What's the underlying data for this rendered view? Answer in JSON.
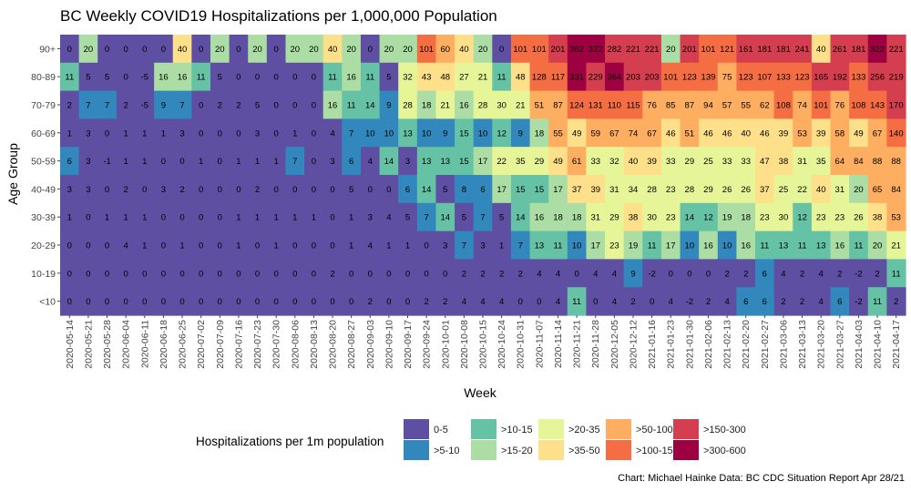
{
  "chart_data": {
    "type": "heatmap",
    "title": "BC Weekly COVID19 Hospitalizations per 1,000,000 Population",
    "xlabel": "Week",
    "ylabel": "Age Group",
    "caption": "Chart: Michael Hainke Data: BC CDC Situation Report Apr 28/21",
    "x": [
      "2020-05-14",
      "2020-05-21",
      "2020-05-28",
      "2020-06-04",
      "2020-06-11",
      "2020-06-18",
      "2020-06-25",
      "2020-07-02",
      "2020-07-09",
      "2020-07-16",
      "2020-07-23",
      "2020-07-30",
      "2020-08-06",
      "2020-08-13",
      "2020-08-20",
      "2020-08-27",
      "2020-09-03",
      "2020-09-10",
      "2020-09-17",
      "2020-09-24",
      "2020-10-01",
      "2020-10-08",
      "2020-10-15",
      "2020-10-24",
      "2020-10-31",
      "2020-11-07",
      "2020-11-14",
      "2020-11-21",
      "2020-11-28",
      "2020-12-05",
      "2020-12-12",
      "2021-01-16",
      "2021-01-23",
      "2021-01-30",
      "2021-02-06",
      "2021-02-13",
      "2021-02-20",
      "2021-02-27",
      "2021-03-06",
      "2021-03-13",
      "2021-03-20",
      "2021-03-27",
      "2021-04-03",
      "2021-04-10",
      "2021-04-17"
    ],
    "x_tick_labels": [
      "2020-05-14",
      "2020-05-21",
      "2020-05-28",
      "2020-06-04",
      "2020-06-11",
      "2020-06-18",
      "2020-06-25",
      "2020-07-02",
      "2020-07-09",
      "2020-07-16",
      "2020-07-23",
      "2020-07-30",
      "2020-08-06",
      "2020-08-13",
      "2020-08-20",
      "2020-08-27",
      "2020-09-03",
      "2020-09-10",
      "2020-09-17",
      "2020-09-24",
      "2020-10-01",
      "2020-10-08",
      "2020-10-15",
      "2020-10-24",
      "2020-10-31",
      "2020-11-07",
      "2020-11-14",
      "2020-11-21",
      "2020-11-28",
      "2020-12-05",
      "2020-12-12",
      "2021-01-16",
      "2021-01-23",
      "2021-01-30",
      "2021-02-06",
      "2021-02-13",
      "2021-02-20",
      "2021-02-27",
      "2021-03-06",
      "2021-03-13",
      "2021-03-20",
      "2021-03-27",
      "2021-04-03",
      "2021-04-10",
      "2021-04-17"
    ],
    "rows": [
      "90+",
      "80-89",
      "70-79",
      "60-69",
      "50-59",
      "40-49",
      "30-39",
      "20-29",
      "10-19",
      "<10"
    ],
    "values": [
      [
        0,
        20,
        0,
        0,
        0,
        0,
        40,
        0,
        20,
        0,
        20,
        0,
        20,
        20,
        40,
        20,
        0,
        20,
        20,
        101,
        60,
        40,
        20,
        0,
        101,
        101,
        201,
        362,
        322,
        282,
        221,
        221,
        20,
        201,
        101,
        121,
        161,
        181,
        181,
        241,
        40,
        261,
        181,
        322,
        221
      ],
      [
        11,
        5,
        5,
        0,
        -5,
        16,
        16,
        11,
        5,
        0,
        0,
        0,
        0,
        0,
        11,
        16,
        11,
        5,
        32,
        43,
        48,
        27,
        21,
        11,
        48,
        128,
        117,
        331,
        229,
        364,
        203,
        203,
        101,
        123,
        139,
        75,
        123,
        107,
        133,
        123,
        165,
        192,
        133,
        256,
        219
      ],
      [
        2,
        7,
        7,
        2,
        -5,
        9,
        7,
        0,
        2,
        2,
        5,
        0,
        0,
        0,
        16,
        11,
        14,
        9,
        28,
        18,
        21,
        16,
        28,
        30,
        21,
        51,
        87,
        124,
        131,
        110,
        115,
        76,
        85,
        87,
        94,
        57,
        55,
        62,
        108,
        74,
        101,
        76,
        108,
        143,
        170
      ],
      [
        1,
        3,
        0,
        1,
        1,
        1,
        3,
        0,
        0,
        0,
        3,
        0,
        1,
        0,
        4,
        7,
        10,
        10,
        13,
        10,
        9,
        15,
        10,
        12,
        9,
        18,
        55,
        49,
        59,
        67,
        74,
        67,
        46,
        51,
        46,
        46,
        40,
        46,
        39,
        53,
        39,
        58,
        49,
        67,
        140
      ],
      [
        6,
        3,
        -1,
        1,
        1,
        0,
        0,
        1,
        0,
        1,
        1,
        1,
        7,
        0,
        3,
        6,
        4,
        14,
        3,
        13,
        13,
        15,
        17,
        22,
        35,
        29,
        49,
        61,
        33,
        32,
        40,
        39,
        33,
        29,
        25,
        33,
        33,
        47,
        38,
        31,
        35,
        64,
        84,
        88,
        88
      ],
      [
        3,
        3,
        0,
        2,
        0,
        3,
        2,
        0,
        0,
        0,
        2,
        0,
        0,
        0,
        0,
        5,
        0,
        0,
        6,
        14,
        5,
        8,
        6,
        17,
        15,
        15,
        17,
        37,
        39,
        31,
        34,
        28,
        23,
        28,
        29,
        26,
        26,
        37,
        25,
        22,
        40,
        31,
        20,
        65,
        84
      ],
      [
        1,
        0,
        1,
        1,
        1,
        0,
        0,
        0,
        0,
        1,
        1,
        1,
        1,
        1,
        0,
        1,
        3,
        4,
        5,
        7,
        14,
        5,
        7,
        5,
        14,
        16,
        18,
        18,
        31,
        29,
        38,
        30,
        23,
        14,
        12,
        19,
        18,
        23,
        30,
        12,
        23,
        23,
        26,
        38,
        53
      ],
      [
        0,
        0,
        0,
        4,
        1,
        0,
        1,
        0,
        0,
        1,
        0,
        1,
        0,
        0,
        0,
        1,
        4,
        1,
        1,
        0,
        3,
        7,
        3,
        1,
        7,
        13,
        11,
        10,
        17,
        23,
        19,
        11,
        17,
        10,
        16,
        10,
        16,
        11,
        13,
        11,
        13,
        16,
        11,
        20,
        21
      ],
      [
        0,
        0,
        0,
        0,
        0,
        0,
        0,
        0,
        0,
        0,
        0,
        0,
        0,
        0,
        2,
        0,
        0,
        0,
        0,
        0,
        0,
        2,
        2,
        2,
        2,
        4,
        4,
        0,
        4,
        4,
        9,
        -2,
        0,
        0,
        0,
        2,
        2,
        6,
        4,
        2,
        4,
        2,
        -2,
        2,
        11
      ],
      [
        0,
        0,
        0,
        0,
        0,
        0,
        0,
        0,
        0,
        0,
        0,
        0,
        0,
        0,
        0,
        0,
        2,
        0,
        0,
        2,
        2,
        4,
        4,
        4,
        0,
        0,
        4,
        11,
        0,
        4,
        2,
        0,
        4,
        -2,
        2,
        4,
        6,
        6,
        2,
        2,
        4,
        6,
        -2,
        11,
        2
      ]
    ],
    "legend": {
      "title": "Hospitalizations per 1m population",
      "items": [
        {
          "label": "0-5",
          "color": "#5e4fa2"
        },
        {
          "label": ">5-10",
          "color": "#3288bd"
        },
        {
          "label": ">10-15",
          "color": "#66c2a5"
        },
        {
          "label": ">15-20",
          "color": "#abdda4"
        },
        {
          "label": ">20-35",
          "color": "#e6f598"
        },
        {
          "label": ">35-50",
          "color": "#fee08b"
        },
        {
          "label": ">50-100",
          "color": "#fdae61"
        },
        {
          "label": ">100-150",
          "color": "#f46d43"
        },
        {
          "label": ">150-300",
          "color": "#d53e4f"
        },
        {
          "label": ">300-600",
          "color": "#9e0142"
        }
      ]
    },
    "bins_upper": [
      5,
      10,
      15,
      20,
      35,
      50,
      100,
      150,
      300,
      600
    ],
    "grid": false
  }
}
